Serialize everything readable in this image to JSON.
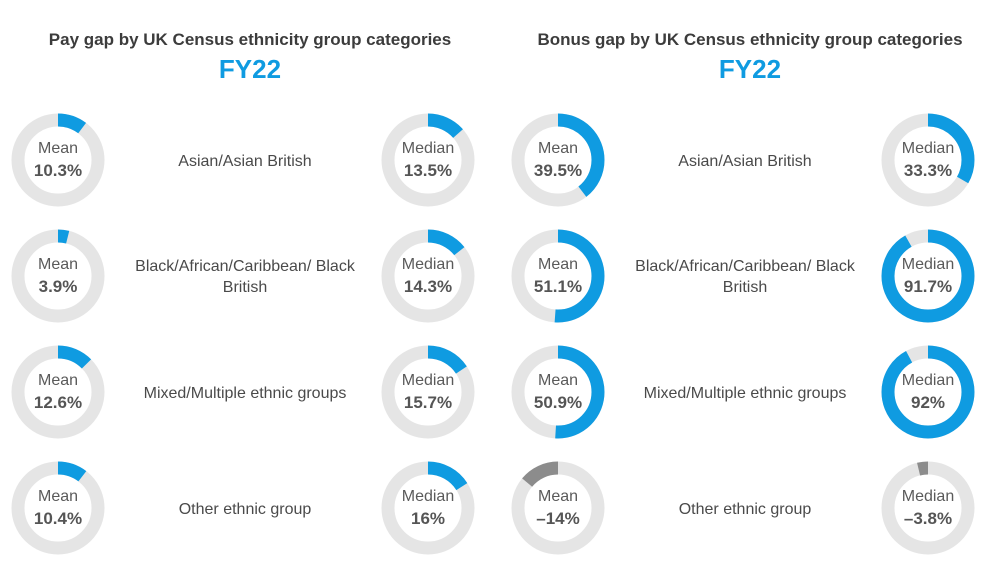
{
  "colors": {
    "accent": "#0f9be1",
    "track": "#e5e5e5",
    "negative": "#8c8c8c"
  },
  "panels": [
    {
      "title": "Pay gap by UK Census ethnicity group categories",
      "subtitle": "FY22",
      "mean_label": "Mean",
      "median_label": "Median"
    },
    {
      "title": "Bonus gap by UK Census ethnicity group categories",
      "subtitle": "FY22",
      "mean_label": "Mean",
      "median_label": "Median"
    }
  ],
  "chart_data": [
    {
      "type": "donut",
      "title": "Pay gap by UK Census ethnicity group categories",
      "subtitle": "FY22",
      "categories": [
        "Asian/Asian British",
        "Black/African/Caribbean/ Black British",
        "Mixed/Multiple ethnic groups",
        "Other ethnic group"
      ],
      "series": [
        {
          "name": "Mean",
          "values": [
            10.3,
            3.9,
            12.6,
            10.4
          ],
          "labels": [
            "10.3%",
            "3.9%",
            "12.6%",
            "10.4%"
          ]
        },
        {
          "name": "Median",
          "values": [
            13.5,
            14.3,
            15.7,
            16
          ],
          "labels": [
            "13.5%",
            "14.3%",
            "15.7%",
            "16%"
          ]
        }
      ]
    },
    {
      "type": "donut",
      "title": "Bonus gap by UK Census ethnicity group categories",
      "subtitle": "FY22",
      "categories": [
        "Asian/Asian British",
        "Black/African/Caribbean/ Black British",
        "Mixed/Multiple ethnic groups",
        "Other ethnic group"
      ],
      "series": [
        {
          "name": "Mean",
          "values": [
            39.5,
            51.1,
            50.9,
            -14
          ],
          "labels": [
            "39.5%",
            "51.1%",
            "50.9%",
            "–14%"
          ]
        },
        {
          "name": "Median",
          "values": [
            33.3,
            91.7,
            92,
            -3.8
          ],
          "labels": [
            "33.3%",
            "91.7%",
            "92%",
            "–3.8%"
          ]
        }
      ]
    }
  ]
}
